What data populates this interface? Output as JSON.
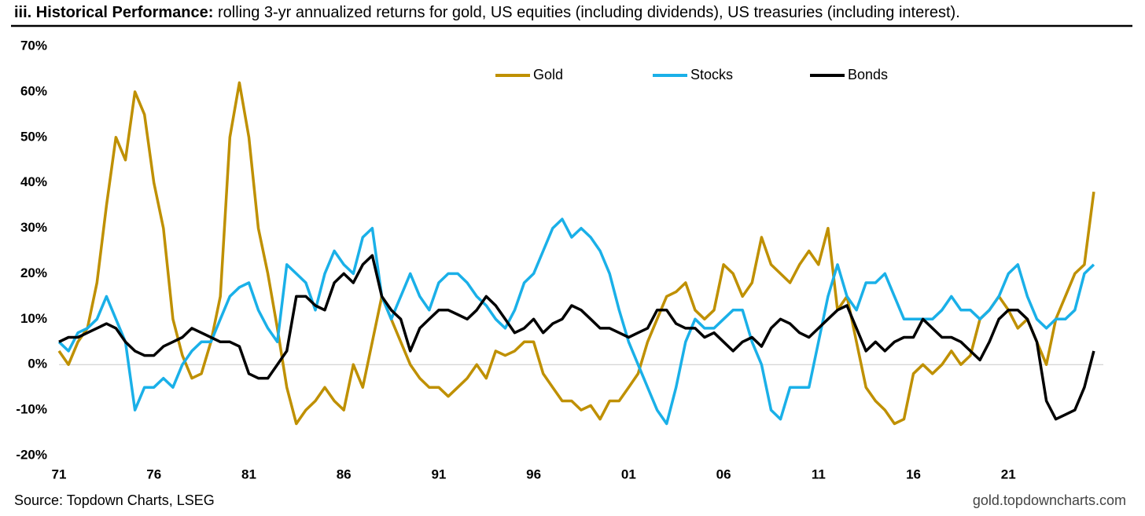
{
  "chart_data": {
    "type": "line",
    "title": "iii. Historical Performance:",
    "subtitle": "rolling 3-yr annualized returns for gold, US equities (including dividends), US treasuries (including interest).",
    "source": "Source: Topdown Charts, LSEG",
    "watermark": "gold.topdowncharts.com",
    "x": [
      1971,
      1971.5,
      1972,
      1972.5,
      1973,
      1973.5,
      1974,
      1974.5,
      1975,
      1975.5,
      1976,
      1976.5,
      1977,
      1977.5,
      1978,
      1978.5,
      1979,
      1979.5,
      1980,
      1980.5,
      1981,
      1981.5,
      1982,
      1982.5,
      1983,
      1983.5,
      1984,
      1984.5,
      1985,
      1985.5,
      1986,
      1986.5,
      1987,
      1987.5,
      1988,
      1988.5,
      1989,
      1989.5,
      1990,
      1990.5,
      1991,
      1991.5,
      1992,
      1992.5,
      1993,
      1993.5,
      1994,
      1994.5,
      1995,
      1995.5,
      1996,
      1996.5,
      1997,
      1997.5,
      1998,
      1998.5,
      1999,
      1999.5,
      2000,
      2000.5,
      2001,
      2001.5,
      2002,
      2002.5,
      2003,
      2003.5,
      2004,
      2004.5,
      2005,
      2005.5,
      2006,
      2006.5,
      2007,
      2007.5,
      2008,
      2008.5,
      2009,
      2009.5,
      2010,
      2010.5,
      2011,
      2011.5,
      2012,
      2012.5,
      2013,
      2013.5,
      2014,
      2014.5,
      2015,
      2015.5,
      2016,
      2016.5,
      2017,
      2017.5,
      2018,
      2018.5,
      2019,
      2019.5,
      2020,
      2020.5,
      2021,
      2021.5,
      2022,
      2022.5,
      2023,
      2023.5,
      2024,
      2024.5,
      2025,
      2025.5
    ],
    "series": [
      {
        "name": "Gold",
        "color": "#bf9000",
        "values": [
          3,
          0,
          5,
          8,
          18,
          35,
          50,
          45,
          60,
          55,
          40,
          30,
          10,
          2,
          -3,
          -2,
          5,
          15,
          50,
          62,
          50,
          30,
          20,
          8,
          -5,
          -13,
          -10,
          -8,
          -5,
          -8,
          -10,
          0,
          -5,
          5,
          15,
          10,
          5,
          0,
          -3,
          -5,
          -5,
          -7,
          -5,
          -3,
          0,
          -3,
          3,
          2,
          3,
          5,
          5,
          -2,
          -5,
          -8,
          -8,
          -10,
          -9,
          -12,
          -8,
          -8,
          -5,
          -2,
          5,
          10,
          15,
          16,
          18,
          12,
          10,
          12,
          22,
          20,
          15,
          18,
          28,
          22,
          20,
          18,
          22,
          25,
          22,
          30,
          12,
          15,
          5,
          -5,
          -8,
          -10,
          -13,
          -12,
          -2,
          0,
          -2,
          0,
          3,
          0,
          2,
          10,
          12,
          15,
          12,
          8,
          10,
          5,
          0,
          10,
          15,
          20,
          22,
          38
        ]
      },
      {
        "name": "Stocks",
        "color": "#1ab0e8",
        "values": [
          5,
          3,
          7,
          8,
          10,
          15,
          10,
          5,
          -10,
          -5,
          -5,
          -3,
          -5,
          0,
          3,
          5,
          5,
          10,
          15,
          17,
          18,
          12,
          8,
          5,
          22,
          20,
          18,
          12,
          20,
          25,
          22,
          20,
          28,
          30,
          15,
          10,
          15,
          20,
          15,
          12,
          18,
          20,
          20,
          18,
          15,
          13,
          10,
          8,
          12,
          18,
          20,
          25,
          30,
          32,
          28,
          30,
          28,
          25,
          20,
          12,
          5,
          0,
          -5,
          -10,
          -13,
          -5,
          5,
          10,
          8,
          8,
          10,
          12,
          12,
          5,
          0,
          -10,
          -12,
          -5,
          -5,
          -5,
          5,
          15,
          22,
          15,
          12,
          18,
          18,
          20,
          15,
          10,
          10,
          10,
          10,
          12,
          15,
          12,
          12,
          10,
          12,
          15,
          20,
          22,
          15,
          10,
          8,
          10,
          10,
          12,
          20,
          22
        ]
      },
      {
        "name": "Bonds",
        "color": "#000000",
        "values": [
          5,
          6,
          6,
          7,
          8,
          9,
          8,
          5,
          3,
          2,
          2,
          4,
          5,
          6,
          8,
          7,
          6,
          5,
          5,
          4,
          -2,
          -3,
          -3,
          0,
          3,
          15,
          15,
          13,
          12,
          18,
          20,
          18,
          22,
          24,
          15,
          12,
          10,
          3,
          8,
          10,
          12,
          12,
          11,
          10,
          12,
          15,
          13,
          10,
          7,
          8,
          10,
          7,
          9,
          10,
          13,
          12,
          10,
          8,
          8,
          7,
          6,
          7,
          8,
          12,
          12,
          9,
          8,
          8,
          6,
          7,
          5,
          3,
          5,
          6,
          4,
          8,
          10,
          9,
          7,
          6,
          8,
          10,
          12,
          13,
          8,
          3,
          5,
          3,
          5,
          6,
          6,
          10,
          8,
          6,
          6,
          5,
          3,
          1,
          5,
          10,
          12,
          12,
          10,
          5,
          -8,
          -12,
          -11,
          -10,
          -5,
          3
        ]
      }
    ],
    "xlim": [
      1971,
      2026
    ],
    "ylim": [
      -20,
      70
    ],
    "xticks": [
      {
        "value": 1971,
        "label": "71"
      },
      {
        "value": 1976,
        "label": "76"
      },
      {
        "value": 1981,
        "label": "81"
      },
      {
        "value": 1986,
        "label": "86"
      },
      {
        "value": 1991,
        "label": "91"
      },
      {
        "value": 1996,
        "label": "96"
      },
      {
        "value": 2001,
        "label": "01"
      },
      {
        "value": 2006,
        "label": "06"
      },
      {
        "value": 2011,
        "label": "11"
      },
      {
        "value": 2016,
        "label": "16"
      },
      {
        "value": 2021,
        "label": "21"
      }
    ],
    "yticks": [
      {
        "value": -20,
        "label": "-20%"
      },
      {
        "value": -10,
        "label": "-10%"
      },
      {
        "value": 0,
        "label": "0%"
      },
      {
        "value": 10,
        "label": "10%"
      },
      {
        "value": 20,
        "label": "20%"
      },
      {
        "value": 30,
        "label": "30%"
      },
      {
        "value": 40,
        "label": "40%"
      },
      {
        "value": 50,
        "label": "50%"
      },
      {
        "value": 60,
        "label": "60%"
      },
      {
        "value": 70,
        "label": "70%"
      }
    ]
  }
}
